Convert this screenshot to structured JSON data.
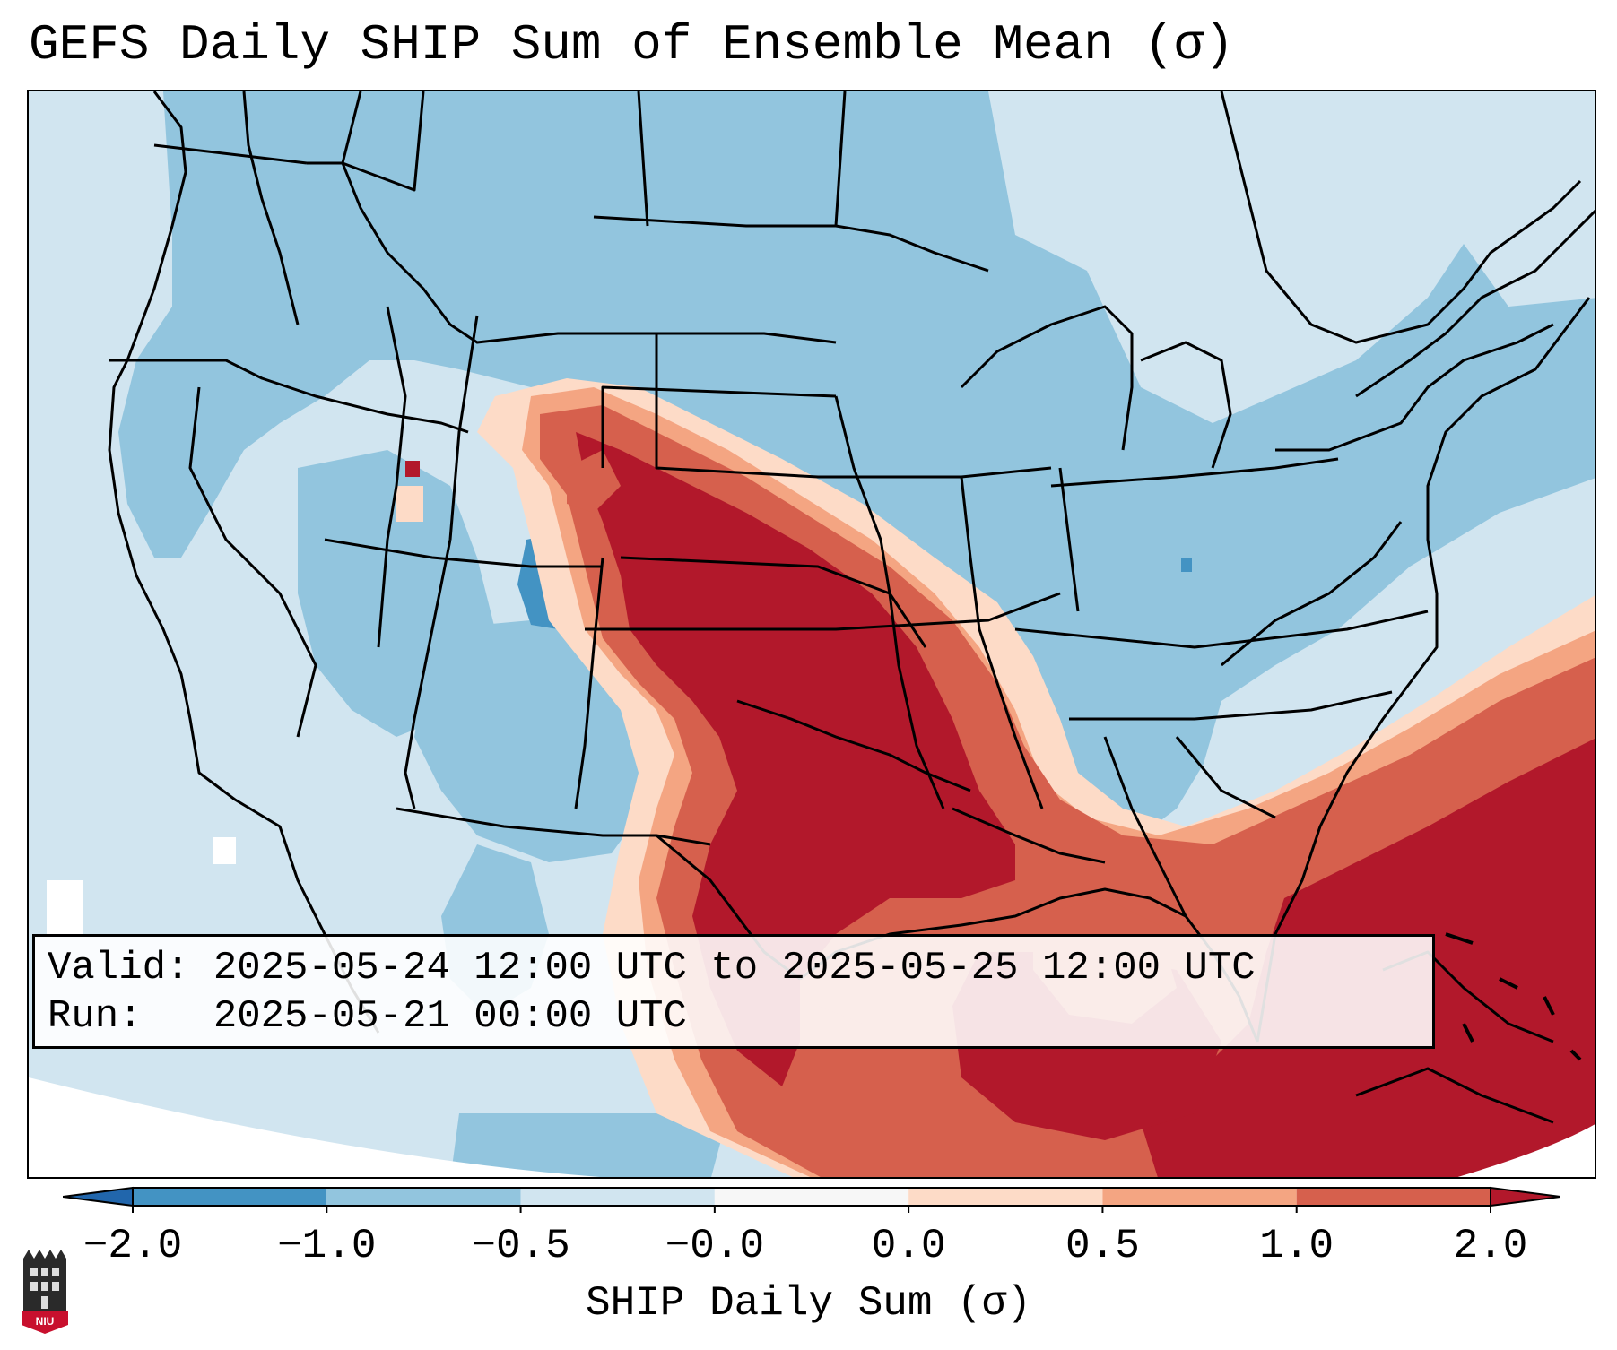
{
  "title": "GEFS Daily SHIP Sum of Ensemble Mean (σ)",
  "info": {
    "valid_label": "Valid:",
    "valid_value": "2025-05-24 12:00 UTC to 2025-05-25 12:00 UTC",
    "run_label": "Run:",
    "run_value": "2025-05-21 00:00 UTC"
  },
  "colorbar": {
    "label": "SHIP Daily Sum (σ)",
    "ticks": [
      "−2.0",
      "−1.0",
      "−0.5",
      "−0.0",
      "0.0",
      "0.5",
      "1.0",
      "2.0"
    ],
    "bins": [
      {
        "range": "< -2.0",
        "color": "#2166ac"
      },
      {
        "range": "-2.0 to -1.0",
        "color": "#4393c3"
      },
      {
        "range": "-1.0 to -0.5",
        "color": "#92c5de"
      },
      {
        "range": "-0.5 to -0.0",
        "color": "#d1e5f0"
      },
      {
        "range": "-0.0 to 0.0",
        "color": "#f7f7f7"
      },
      {
        "range": "0.0 to 0.5",
        "color": "#fddbc7"
      },
      {
        "range": "0.5 to 1.0",
        "color": "#f4a582"
      },
      {
        "range": "1.0 to 2.0",
        "color": "#d6604d"
      },
      {
        "range": "> 2.0",
        "color": "#b2182b"
      }
    ]
  },
  "logo": {
    "text": "NIU"
  },
  "colors": {
    "strong_negative": "#4393c3",
    "negative": "#92c5de",
    "weak_negative": "#d1e5f0",
    "weak_positive": "#fddbc7",
    "moderate_positive": "#f4a582",
    "positive": "#d6604d",
    "strong_positive": "#b2182b"
  }
}
